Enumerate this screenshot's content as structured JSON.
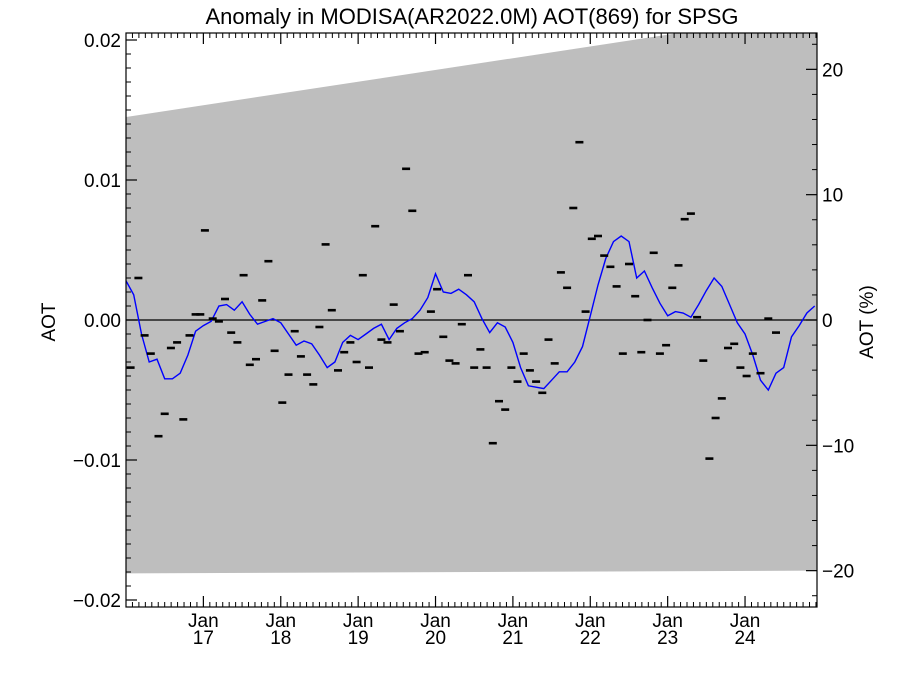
{
  "chart_data": {
    "type": "line",
    "title": "Anomaly in MODISA(AR2022.0M) AOT(869) for SPSG",
    "xlabel": "",
    "ylabel": "AOT",
    "ylabel_right": "AOT (%)",
    "xlim": [
      2016.0,
      2024.93
    ],
    "ylim": [
      -0.0205,
      0.0205
    ],
    "ylim_right": [
      -22.9,
      22.9
    ],
    "yticks": [
      {
        "value": 0.02,
        "label": "0.02"
      },
      {
        "value": 0.01,
        "label": "0.01"
      },
      {
        "value": 0.0,
        "label": "0.00"
      },
      {
        "value": -0.01,
        "label": "−0.01"
      },
      {
        "value": -0.02,
        "label": "−0.02"
      }
    ],
    "yticks_right": [
      {
        "value": 20,
        "label": "20"
      },
      {
        "value": 10,
        "label": "10"
      },
      {
        "value": 0,
        "label": "0"
      },
      {
        "value": -10,
        "label": "−10"
      },
      {
        "value": -20,
        "label": "−20"
      }
    ],
    "xticks": [
      {
        "value": 2017.0,
        "month": "Jan",
        "year": "17"
      },
      {
        "value": 2018.0,
        "month": "Jan",
        "year": "18"
      },
      {
        "value": 2019.0,
        "month": "Jan",
        "year": "19"
      },
      {
        "value": 2020.0,
        "month": "Jan",
        "year": "20"
      },
      {
        "value": 2021.0,
        "month": "Jan",
        "year": "21"
      },
      {
        "value": 2022.0,
        "month": "Jan",
        "year": "22"
      },
      {
        "value": 2023.0,
        "month": "Jan",
        "year": "23"
      },
      {
        "value": 2024.0,
        "month": "Jan",
        "year": "24"
      }
    ],
    "envelope": {
      "color": "#bebebe",
      "upper": [
        [
          2016.0,
          0.0145
        ],
        [
          2024.93,
          0.022
        ]
      ],
      "lower": [
        [
          2016.0,
          -0.0181
        ],
        [
          2024.93,
          -0.0179
        ]
      ]
    },
    "zero_line": 0,
    "series": [
      {
        "style": "line",
        "color": "#0000ff",
        "points": [
          [
            2016.0,
            0.0028
          ],
          [
            2016.1,
            0.0018
          ],
          [
            2016.2,
            -0.001
          ],
          [
            2016.3,
            -0.003
          ],
          [
            2016.4,
            -0.0028
          ],
          [
            2016.5,
            -0.0042
          ],
          [
            2016.6,
            -0.0042
          ],
          [
            2016.7,
            -0.0038
          ],
          [
            2016.8,
            -0.0025
          ],
          [
            2016.9,
            -0.0008
          ],
          [
            2017.0,
            -0.0004
          ],
          [
            2017.1,
            -0.0001
          ],
          [
            2017.2,
            0.001
          ],
          [
            2017.3,
            0.0011
          ],
          [
            2017.4,
            0.0007
          ],
          [
            2017.5,
            0.0013
          ],
          [
            2017.6,
            0.0004
          ],
          [
            2017.7,
            -0.0003
          ],
          [
            2017.8,
            -0.0001
          ],
          [
            2017.9,
            0.0001
          ],
          [
            2018.0,
            -0.0002
          ],
          [
            2018.1,
            -0.001
          ],
          [
            2018.2,
            -0.0018
          ],
          [
            2018.3,
            -0.0015
          ],
          [
            2018.4,
            -0.0017
          ],
          [
            2018.5,
            -0.0025
          ],
          [
            2018.6,
            -0.0034
          ],
          [
            2018.7,
            -0.003
          ],
          [
            2018.8,
            -0.0016
          ],
          [
            2018.9,
            -0.0011
          ],
          [
            2019.0,
            -0.0014
          ],
          [
            2019.1,
            -0.001
          ],
          [
            2019.2,
            -0.0006
          ],
          [
            2019.3,
            -0.0003
          ],
          [
            2019.4,
            -0.0014
          ],
          [
            2019.5,
            -0.0006
          ],
          [
            2019.6,
            -0.0002
          ],
          [
            2019.7,
            0.0001
          ],
          [
            2019.8,
            0.0007
          ],
          [
            2019.9,
            0.0016
          ],
          [
            2020.0,
            0.0033
          ],
          [
            2020.1,
            0.002
          ],
          [
            2020.2,
            0.0019
          ],
          [
            2020.3,
            0.0022
          ],
          [
            2020.4,
            0.0018
          ],
          [
            2020.5,
            0.0013
          ],
          [
            2020.6,
            0.0001
          ],
          [
            2020.7,
            -0.0009
          ],
          [
            2020.8,
            -0.0002
          ],
          [
            2020.9,
            -0.0005
          ],
          [
            2021.0,
            -0.0016
          ],
          [
            2021.1,
            -0.0034
          ],
          [
            2021.2,
            -0.0047
          ],
          [
            2021.3,
            -0.0048
          ],
          [
            2021.4,
            -0.0049
          ],
          [
            2021.5,
            -0.0043
          ],
          [
            2021.6,
            -0.0037
          ],
          [
            2021.7,
            -0.0037
          ],
          [
            2021.8,
            -0.003
          ],
          [
            2021.9,
            -0.0019
          ],
          [
            2022.0,
            0.0003
          ],
          [
            2022.1,
            0.0025
          ],
          [
            2022.2,
            0.0044
          ],
          [
            2022.3,
            0.0056
          ],
          [
            2022.4,
            0.006
          ],
          [
            2022.5,
            0.0056
          ],
          [
            2022.6,
            0.003
          ],
          [
            2022.7,
            0.0035
          ],
          [
            2022.8,
            0.0023
          ],
          [
            2022.9,
            0.0012
          ],
          [
            2023.0,
            0.0003
          ],
          [
            2023.1,
            0.0006
          ],
          [
            2023.2,
            0.0005
          ],
          [
            2023.3,
            0.0002
          ],
          [
            2023.4,
            0.0011
          ],
          [
            2023.5,
            0.0021
          ],
          [
            2023.6,
            0.003
          ],
          [
            2023.7,
            0.0024
          ],
          [
            2023.8,
            0.0011
          ],
          [
            2023.9,
            -0.0002
          ],
          [
            2024.0,
            -0.001
          ],
          [
            2024.1,
            -0.0025
          ],
          [
            2024.2,
            -0.0043
          ],
          [
            2024.3,
            -0.005
          ],
          [
            2024.4,
            -0.0038
          ],
          [
            2024.5,
            -0.0034
          ],
          [
            2024.6,
            -0.0012
          ],
          [
            2024.7,
            -0.0004
          ],
          [
            2024.8,
            0.0005
          ],
          [
            2024.9,
            0.001
          ]
        ]
      },
      {
        "style": "marker",
        "color": "#000000",
        "points": [
          [
            2016.06,
            -0.0034
          ],
          [
            2016.16,
            0.003
          ],
          [
            2016.24,
            -0.0011
          ],
          [
            2016.32,
            -0.0024
          ],
          [
            2016.42,
            -0.0083
          ],
          [
            2016.5,
            -0.0067
          ],
          [
            2016.58,
            -0.002
          ],
          [
            2016.66,
            -0.0016
          ],
          [
            2016.74,
            -0.0071
          ],
          [
            2016.82,
            -0.0011
          ],
          [
            2016.9,
            0.0004
          ],
          [
            2016.96,
            0.0004
          ],
          [
            2017.02,
            0.0064
          ],
          [
            2017.12,
            0.0001
          ],
          [
            2017.2,
            -0.0001
          ],
          [
            2017.28,
            0.0015
          ],
          [
            2017.36,
            -0.0009
          ],
          [
            2017.44,
            -0.0016
          ],
          [
            2017.52,
            0.0032
          ],
          [
            2017.6,
            -0.0032
          ],
          [
            2017.68,
            -0.0028
          ],
          [
            2017.76,
            0.0014
          ],
          [
            2017.84,
            0.0042
          ],
          [
            2017.92,
            -0.0022
          ],
          [
            2018.02,
            -0.0059
          ],
          [
            2018.1,
            -0.0039
          ],
          [
            2018.18,
            -0.0008
          ],
          [
            2018.26,
            -0.0026
          ],
          [
            2018.34,
            -0.0039
          ],
          [
            2018.42,
            -0.0046
          ],
          [
            2018.5,
            -0.0005
          ],
          [
            2018.58,
            0.0054
          ],
          [
            2018.66,
            0.0007
          ],
          [
            2018.74,
            -0.0036
          ],
          [
            2018.82,
            -0.0023
          ],
          [
            2018.9,
            -0.0016
          ],
          [
            2018.98,
            -0.003
          ],
          [
            2019.06,
            0.0032
          ],
          [
            2019.14,
            -0.0034
          ],
          [
            2019.22,
            0.0067
          ],
          [
            2019.3,
            -0.0014
          ],
          [
            2019.38,
            -0.0016
          ],
          [
            2019.46,
            0.0011
          ],
          [
            2019.54,
            -0.0008
          ],
          [
            2019.62,
            0.0108
          ],
          [
            2019.7,
            0.0078
          ],
          [
            2019.78,
            -0.0024
          ],
          [
            2019.86,
            -0.0023
          ],
          [
            2019.94,
            0.0006
          ],
          [
            2020.02,
            0.0022
          ],
          [
            2020.1,
            -0.0012
          ],
          [
            2020.18,
            -0.0029
          ],
          [
            2020.26,
            -0.0031
          ],
          [
            2020.34,
            -0.0003
          ],
          [
            2020.42,
            0.0032
          ],
          [
            2020.5,
            -0.0034
          ],
          [
            2020.58,
            -0.0021
          ],
          [
            2020.66,
            -0.0034
          ],
          [
            2020.74,
            -0.0088
          ],
          [
            2020.82,
            -0.0058
          ],
          [
            2020.9,
            -0.0064
          ],
          [
            2020.98,
            -0.0034
          ],
          [
            2021.06,
            -0.0044
          ],
          [
            2021.14,
            -0.0024
          ],
          [
            2021.22,
            -0.0036
          ],
          [
            2021.3,
            -0.0044
          ],
          [
            2021.38,
            -0.0052
          ],
          [
            2021.46,
            -0.0014
          ],
          [
            2021.54,
            -0.0031
          ],
          [
            2021.62,
            0.0034
          ],
          [
            2021.7,
            0.0023
          ],
          [
            2021.78,
            0.008
          ],
          [
            2021.86,
            0.0127
          ],
          [
            2021.94,
            0.0006
          ],
          [
            2022.02,
            0.0058
          ],
          [
            2022.1,
            0.006
          ],
          [
            2022.18,
            0.0046
          ],
          [
            2022.26,
            0.0038
          ],
          [
            2022.34,
            0.0024
          ],
          [
            2022.42,
            -0.0024
          ],
          [
            2022.5,
            0.004
          ],
          [
            2022.58,
            0.0017
          ],
          [
            2022.66,
            -0.0023
          ],
          [
            2022.74,
            0.0
          ],
          [
            2022.82,
            0.0048
          ],
          [
            2022.9,
            -0.0024
          ],
          [
            2022.98,
            -0.0018
          ],
          [
            2023.06,
            0.0023
          ],
          [
            2023.14,
            0.0039
          ],
          [
            2023.22,
            0.0072
          ],
          [
            2023.3,
            0.0076
          ],
          [
            2023.38,
            0.0002
          ],
          [
            2023.46,
            -0.0029
          ],
          [
            2023.54,
            -0.0099
          ],
          [
            2023.62,
            -0.007
          ],
          [
            2023.7,
            -0.0056
          ],
          [
            2023.78,
            -0.002
          ],
          [
            2023.86,
            -0.0017
          ],
          [
            2023.94,
            -0.0034
          ],
          [
            2024.02,
            -0.004
          ],
          [
            2024.1,
            -0.0024
          ],
          [
            2024.2,
            -0.0038
          ],
          [
            2024.3,
            0.0001
          ],
          [
            2024.4,
            -0.0009
          ]
        ]
      }
    ]
  }
}
